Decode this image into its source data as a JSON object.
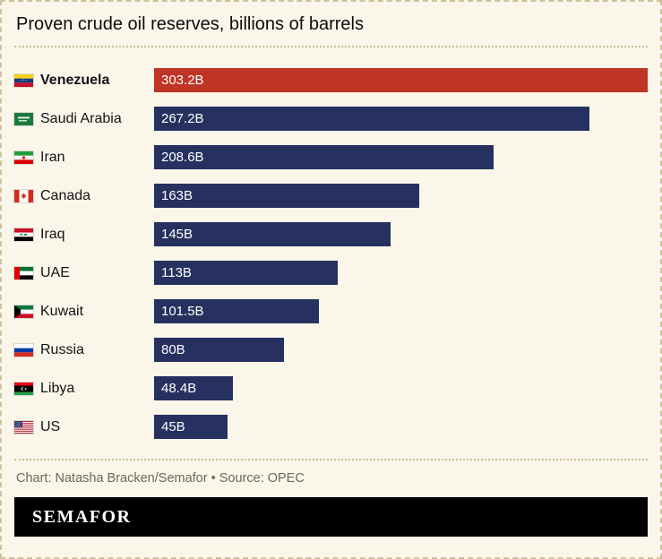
{
  "title": "Proven crude oil reserves, billions of barrels",
  "credit": "Chart: Natasha Bracken/Semafor • Source: OPEC",
  "logo": "SEMAFOR",
  "colors": {
    "bar": "#26315f",
    "highlight": "#bf3425",
    "background": "#faf6ea",
    "border": "#cfc29b",
    "credit_text": "#6d685c",
    "logo_bar": "#000000"
  },
  "chart_data": {
    "type": "bar",
    "orientation": "horizontal",
    "title": "Proven crude oil reserves, billions of barrels",
    "xlabel": "",
    "ylabel": "",
    "xlim": [
      0,
      303.2
    ],
    "grid": false,
    "legend": "none",
    "categories": [
      "Venezuela",
      "Saudi Arabia",
      "Iran",
      "Canada",
      "Iraq",
      "UAE",
      "Kuwait",
      "Russia",
      "Libya",
      "US"
    ],
    "values": [
      303.2,
      267.2,
      208.6,
      163,
      145,
      113,
      101.5,
      80,
      48.4,
      45
    ],
    "value_labels": [
      "303.2B",
      "267.2B",
      "208.6B",
      "163B",
      "145B",
      "113B",
      "101.5B",
      "80B",
      "48.4B",
      "45B"
    ],
    "highlight_index": 0,
    "unit": "billions of barrels"
  }
}
